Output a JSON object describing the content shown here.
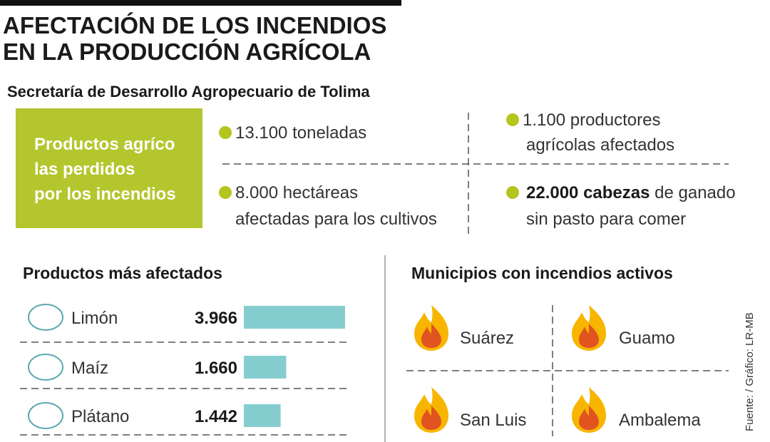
{
  "header": {
    "title_lines": [
      "AFECTACIÓN DE LOS INCENDIOS",
      "EN LA PRODUCCIÓN AGRÍCOLA"
    ],
    "subtitle": "Secretaría de Desarrollo Agropecuario de Tolima"
  },
  "highlight": {
    "lines": [
      "Productos agríco",
      "las perdidos",
      "por los incendios"
    ]
  },
  "stats": [
    {
      "lines": [
        "13.100 toneladas"
      ]
    },
    {
      "lines": [
        "1.100 productores",
        "agrícolas afectados"
      ]
    },
    {
      "lines": [
        "8.000 hectáreas",
        "afectadas para los cultivos"
      ]
    },
    {
      "bold": "22.000 cabezas",
      "rest": " de ganado",
      "lines": [
        "sin pasto para comer"
      ]
    }
  ],
  "products": {
    "heading": "Productos más afectados",
    "categories": [
      "Limón",
      "Maíz",
      "Plátano"
    ],
    "values": [
      3966,
      1660,
      1442
    ],
    "value_labels": [
      "3.966",
      "1.660",
      "1.442"
    ],
    "color": "#86cdd0"
  },
  "municipalities": {
    "heading": "Municipios con incendios activos",
    "names": [
      "Suárez",
      "Guamo",
      "San Luis",
      "Ambalema"
    ]
  },
  "source": "Fuente: / Gráfico: LR-MB"
}
